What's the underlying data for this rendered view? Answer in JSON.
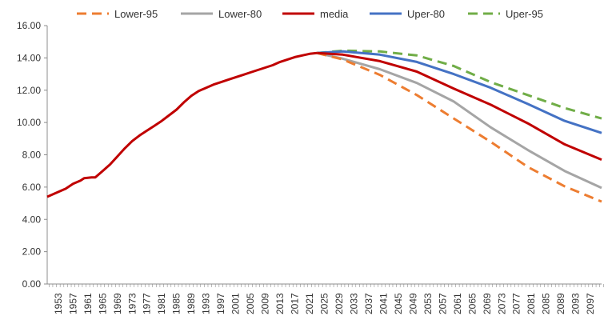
{
  "chart_data": {
    "type": "line",
    "title": "",
    "xlabel": "",
    "ylabel": "",
    "ylim": [
      0,
      16
    ],
    "y_ticks": [
      "0.00",
      "2.00",
      "4.00",
      "6.00",
      "8.00",
      "10.00",
      "12.00",
      "14.00",
      "16.00"
    ],
    "x_ticks": [
      "1953",
      "1957",
      "1961",
      "1965",
      "1969",
      "1973",
      "1977",
      "1981",
      "1985",
      "1989",
      "1993",
      "1997",
      "2001",
      "2005",
      "2009",
      "2013",
      "2017",
      "2021",
      "2025",
      "2029",
      "2033",
      "2037",
      "2041",
      "2045",
      "2049",
      "2053",
      "2057",
      "2061",
      "2065",
      "2069",
      "2073",
      "2077",
      "2081",
      "2085",
      "2089",
      "2093",
      "2097"
    ],
    "legend_position": "top",
    "historical": {
      "x": [
        1950,
        1953,
        1955,
        1957,
        1959,
        1960,
        1962,
        1963,
        1965,
        1967,
        1969,
        1971,
        1973,
        1975,
        1977,
        1979,
        1981,
        1983,
        1985,
        1987,
        1989,
        1991,
        1993,
        1995,
        1997,
        1999,
        2001,
        2003,
        2005,
        2007,
        2009,
        2011,
        2013,
        2015,
        2017,
        2019,
        2021,
        2023
      ],
      "y": [
        5.4,
        5.7,
        5.9,
        6.2,
        6.4,
        6.55,
        6.6,
        6.6,
        7.0,
        7.4,
        7.9,
        8.4,
        8.85,
        9.2,
        9.5,
        9.8,
        10.1,
        10.45,
        10.8,
        11.25,
        11.65,
        11.95,
        12.15,
        12.35,
        12.5,
        12.65,
        12.8,
        12.95,
        13.1,
        13.25,
        13.4,
        13.55,
        13.75,
        13.9,
        14.05,
        14.15,
        14.25,
        14.3
      ]
    },
    "series": [
      {
        "name": "Lower-95",
        "color": "#ED7D31",
        "dash": "dashed",
        "x": [
          2023,
          2030,
          2040,
          2050,
          2060,
          2070,
          2080,
          2090,
          2100
        ],
        "y": [
          14.3,
          13.9,
          12.95,
          11.7,
          10.25,
          8.8,
          7.25,
          6.05,
          5.1
        ]
      },
      {
        "name": "Lower-80",
        "color": "#A5A5A5",
        "dash": "solid",
        "x": [
          2023,
          2030,
          2040,
          2050,
          2060,
          2070,
          2080,
          2090,
          2100
        ],
        "y": [
          14.3,
          13.95,
          13.3,
          12.45,
          11.3,
          9.7,
          8.3,
          7.0,
          5.95
        ]
      },
      {
        "name": "media",
        "color": "#C00000",
        "dash": "solid",
        "x": [
          2023,
          2030,
          2040,
          2050,
          2060,
          2070,
          2080,
          2090,
          2100
        ],
        "y": [
          14.3,
          14.2,
          13.8,
          13.15,
          12.1,
          11.1,
          9.95,
          8.65,
          7.7
        ]
      },
      {
        "name": "Uper-80",
        "color": "#4472C4",
        "dash": "solid",
        "x": [
          2023,
          2030,
          2040,
          2050,
          2060,
          2070,
          2080,
          2090,
          2100
        ],
        "y": [
          14.3,
          14.4,
          14.2,
          13.75,
          13.0,
          12.15,
          11.15,
          10.1,
          9.35
        ]
      },
      {
        "name": "Uper-95",
        "color": "#70AD47",
        "dash": "dashed",
        "x": [
          2023,
          2030,
          2040,
          2050,
          2060,
          2070,
          2080,
          2090,
          2100
        ],
        "y": [
          14.3,
          14.45,
          14.4,
          14.15,
          13.5,
          12.5,
          11.7,
          10.9,
          10.25
        ]
      }
    ]
  }
}
